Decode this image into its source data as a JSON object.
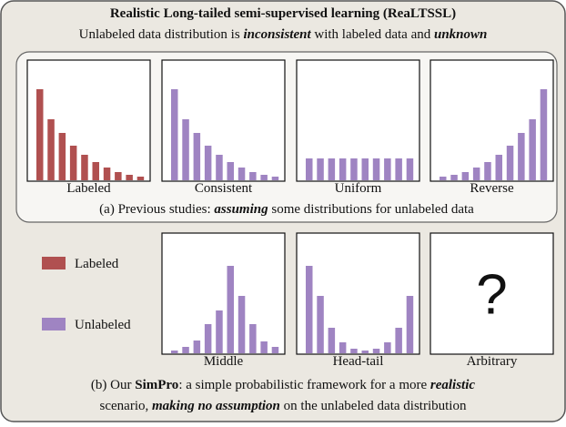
{
  "title": "Realistic Long-tailed semi-supervised learning (ReaLTSSL)",
  "subtitle": [
    "Unlabeled data distribution is ",
    "inconsistent",
    " with labeled data and ",
    "unknown"
  ],
  "top_panels": [
    {
      "label": "Labeled",
      "color": "#b05050",
      "values": [
        100,
        67,
        52,
        38,
        28,
        20,
        14,
        9,
        6,
        4
      ]
    },
    {
      "label": "Consistent",
      "color": "#9f84c2",
      "values": [
        100,
        67,
        52,
        38,
        28,
        20,
        14,
        9,
        6,
        4
      ]
    },
    {
      "label": "Uniform",
      "color": "#9f84c2",
      "values": [
        24,
        24,
        24,
        24,
        24,
        24,
        24,
        24,
        24,
        24
      ]
    },
    {
      "label": "Reverse",
      "color": "#9f84c2",
      "values": [
        4,
        6,
        9,
        14,
        20,
        28,
        38,
        52,
        67,
        100
      ]
    }
  ],
  "caption_a": [
    "(a) Previous studies: ",
    "assuming",
    " some distributions for unlabeled data"
  ],
  "legend": [
    {
      "name": "Labeled",
      "color": "#b05050"
    },
    {
      "name": "Unlabeled",
      "color": "#9f84c2"
    }
  ],
  "bottom_panels": [
    {
      "label": "Middle",
      "color": "#9f84c2",
      "values": [
        3,
        7,
        14,
        32,
        47,
        96,
        63,
        32,
        13,
        7
      ]
    },
    {
      "label": "Head-tail",
      "color": "#9f84c2",
      "values": [
        96,
        63,
        28,
        12,
        5,
        3,
        5,
        12,
        28,
        63
      ]
    },
    {
      "label": "Arbitrary",
      "symbol": "?"
    }
  ],
  "caption_b_line1": [
    "(b) Our ",
    "SimPro",
    ": a simple probabilistic framework for a more ",
    "realistic"
  ],
  "caption_b_line2": [
    "scenario, ",
    "making no assumption",
    " on the unlabeled data distribution"
  ]
}
